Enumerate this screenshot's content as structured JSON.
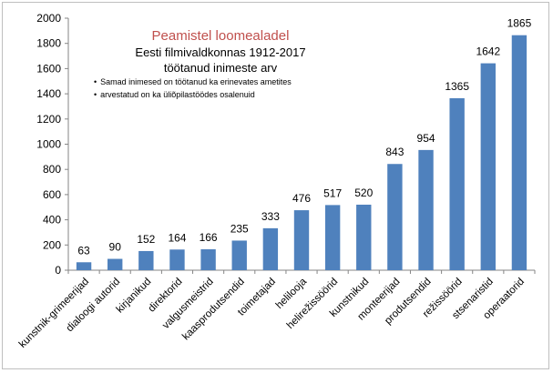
{
  "chart_data": {
    "type": "bar",
    "title": "Peamistel loomealadel",
    "subtitle_lines": [
      "Eesti filmivaldkonnas 1912-2017",
      "töötanud inimeste arv"
    ],
    "notes": [
      "Samad inimesed on töötanud ka erinevates ametites",
      "arvestatud on ka üliõpilastöödes osalenuid"
    ],
    "categories": [
      "kunstnik-grimeerijad",
      "dialoogi autorid",
      "kirjanikud",
      "direktorid",
      "valgusmeistrid",
      "kaasprodutsendid",
      "toimetajad",
      "helilooja",
      "helirežissöörid",
      "kunstnikud",
      "monteerijad",
      "produtsendid",
      "režissöörid",
      "stsenaristid",
      "operaatorid"
    ],
    "values": [
      63,
      90,
      152,
      164,
      166,
      235,
      333,
      476,
      517,
      520,
      843,
      954,
      1365,
      1642,
      1865
    ],
    "y_ticks": [
      "0",
      "200",
      "400",
      "600",
      "800",
      "1000",
      "1200",
      "1400",
      "1600",
      "1800",
      "2000"
    ],
    "ylim": [
      0,
      2000
    ],
    "grid": false,
    "legend": "none",
    "colors": {
      "bar": "#4f81bd",
      "axis": "#868686",
      "title": "#c0504d"
    }
  }
}
